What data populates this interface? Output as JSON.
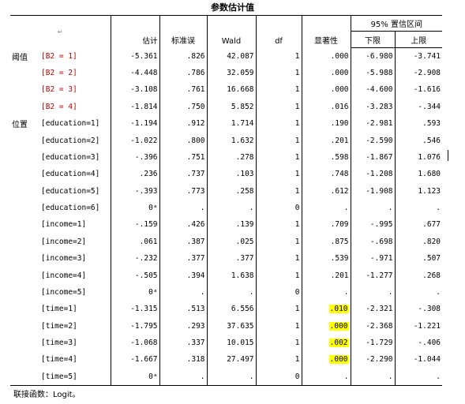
{
  "title": "参数估计值",
  "header": {
    "anchor_mark": "↵",
    "ci_group": "95% 置信区间",
    "columns": [
      "估计",
      "标准误",
      "Wald",
      "df",
      "显著性",
      "下限",
      "上限"
    ]
  },
  "groups": {
    "threshold": "阈值",
    "location": "位置"
  },
  "rows": [
    {
      "group": "阈值",
      "term": "[B2 = 1]",
      "red": true,
      "estimate": "-5.361",
      "se": ".826",
      "wald": "42.087",
      "df": "1",
      "sig": ".000",
      "sig_highlight": false,
      "lower": "-6.980",
      "upper": "-3.741"
    },
    {
      "group": "",
      "term": "[B2 = 2]",
      "red": true,
      "estimate": "-4.448",
      "se": ".786",
      "wald": "32.059",
      "df": "1",
      "sig": ".000",
      "sig_highlight": false,
      "lower": "-5.988",
      "upper": "-2.908"
    },
    {
      "group": "",
      "term": "[B2 = 3]",
      "red": true,
      "estimate": "-3.108",
      "se": ".761",
      "wald": "16.668",
      "df": "1",
      "sig": ".000",
      "sig_highlight": false,
      "lower": "-4.600",
      "upper": "-1.616"
    },
    {
      "group": "",
      "term": "[B2 = 4]",
      "red": true,
      "estimate": "-1.814",
      "se": ".750",
      "wald": "5.852",
      "df": "1",
      "sig": ".016",
      "sig_highlight": false,
      "lower": "-3.283",
      "upper": "-.344"
    },
    {
      "group": "位置",
      "term": "[education=1]",
      "red": false,
      "estimate": "-1.194",
      "se": ".912",
      "wald": "1.714",
      "df": "1",
      "sig": ".190",
      "sig_highlight": false,
      "lower": "-2.981",
      "upper": ".593"
    },
    {
      "group": "",
      "term": "[education=2]",
      "red": false,
      "estimate": "-1.022",
      "se": ".800",
      "wald": "1.632",
      "df": "1",
      "sig": ".201",
      "sig_highlight": false,
      "lower": "-2.590",
      "upper": ".546"
    },
    {
      "group": "",
      "term": "[education=3]",
      "red": false,
      "estimate": "-.396",
      "se": ".751",
      "wald": ".278",
      "df": "1",
      "sig": ".598",
      "sig_highlight": false,
      "lower": "-1.867",
      "upper": "1.076"
    },
    {
      "group": "",
      "term": "[education=4]",
      "red": false,
      "estimate": ".236",
      "se": ".737",
      "wald": ".103",
      "df": "1",
      "sig": ".748",
      "sig_highlight": false,
      "lower": "-1.208",
      "upper": "1.680"
    },
    {
      "group": "",
      "term": "[education=5]",
      "red": false,
      "estimate": "-.393",
      "se": ".773",
      "wald": ".258",
      "df": "1",
      "sig": ".612",
      "sig_highlight": false,
      "lower": "-1.908",
      "upper": "1.123"
    },
    {
      "group": "",
      "term": "[education=6]",
      "red": false,
      "estimate": "0ᵃ",
      "se": ".",
      "wald": ".",
      "df": "0",
      "sig": ".",
      "sig_highlight": false,
      "lower": ".",
      "upper": "."
    },
    {
      "group": "",
      "term": "[income=1]",
      "red": false,
      "estimate": "-.159",
      "se": ".426",
      "wald": ".139",
      "df": "1",
      "sig": ".709",
      "sig_highlight": false,
      "lower": "-.995",
      "upper": ".677"
    },
    {
      "group": "",
      "term": "[income=2]",
      "red": false,
      "estimate": ".061",
      "se": ".387",
      "wald": ".025",
      "df": "1",
      "sig": ".875",
      "sig_highlight": false,
      "lower": "-.698",
      "upper": ".820"
    },
    {
      "group": "",
      "term": "[income=3]",
      "red": false,
      "estimate": "-.232",
      "se": ".377",
      "wald": ".377",
      "df": "1",
      "sig": ".539",
      "sig_highlight": false,
      "lower": "-.971",
      "upper": ".507"
    },
    {
      "group": "",
      "term": "[income=4]",
      "red": false,
      "estimate": "-.505",
      "se": ".394",
      "wald": "1.638",
      "df": "1",
      "sig": ".201",
      "sig_highlight": false,
      "lower": "-1.277",
      "upper": ".268"
    },
    {
      "group": "",
      "term": "[income=5]",
      "red": false,
      "estimate": "0ᵃ",
      "se": ".",
      "wald": ".",
      "df": "0",
      "sig": ".",
      "sig_highlight": false,
      "lower": ".",
      "upper": "."
    },
    {
      "group": "",
      "term": "[time=1]",
      "red": false,
      "estimate": "-1.315",
      "se": ".513",
      "wald": "6.556",
      "df": "1",
      "sig": ".010",
      "sig_highlight": true,
      "lower": "-2.321",
      "upper": "-.308"
    },
    {
      "group": "",
      "term": "[time=2]",
      "red": false,
      "estimate": "-1.795",
      "se": ".293",
      "wald": "37.635",
      "df": "1",
      "sig": ".000",
      "sig_highlight": true,
      "lower": "-2.368",
      "upper": "-1.221"
    },
    {
      "group": "",
      "term": "[time=3]",
      "red": false,
      "estimate": "-1.068",
      "se": ".337",
      "wald": "10.015",
      "df": "1",
      "sig": ".002",
      "sig_highlight": true,
      "lower": "-1.729",
      "upper": "-.406"
    },
    {
      "group": "",
      "term": "[time=4]",
      "red": false,
      "estimate": "-1.667",
      "se": ".318",
      "wald": "27.497",
      "df": "1",
      "sig": ".000",
      "sig_highlight": true,
      "lower": "-2.290",
      "upper": "-1.044"
    },
    {
      "group": "",
      "term": "[time=5]",
      "red": false,
      "estimate": "0ᵃ",
      "se": ".",
      "wald": ".",
      "df": "0",
      "sig": ".",
      "sig_highlight": false,
      "lower": ".",
      "upper": "."
    }
  ],
  "footnote": "联接函数：Logit。",
  "colors": {
    "term_red": "#c00000",
    "highlight": "#ffff00"
  }
}
